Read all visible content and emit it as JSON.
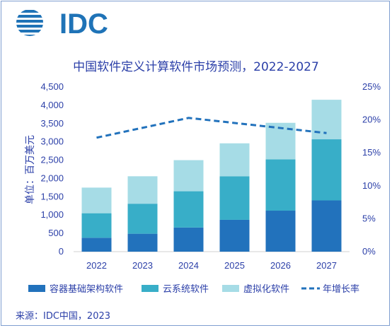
{
  "logo": {
    "text": "IDC",
    "color": "#1f73b7"
  },
  "source": "来源：IDC中国，2023",
  "chart_data": {
    "type": "bar",
    "stacked": true,
    "title": "中国软件定义计算软件市场预测，2022-2027",
    "ylabel": "单位：百万美元",
    "categories": [
      "2022",
      "2023",
      "2024",
      "2025",
      "2026",
      "2027"
    ],
    "ylim": [
      0,
      4500
    ],
    "yticks": [
      "0",
      "500",
      "1,000",
      "1,500",
      "2,000",
      "2,500",
      "3,000",
      "3,500",
      "4,000",
      "4,500"
    ],
    "y2lim": [
      0,
      25
    ],
    "y2ticks": [
      "0%",
      "5%",
      "10%",
      "15%",
      "20%",
      "25%"
    ],
    "series": [
      {
        "name": "容器基础架构软件",
        "color": "#2272bc",
        "values": [
          380,
          490,
          660,
          870,
          1120,
          1400
        ]
      },
      {
        "name": "云系统软件",
        "color": "#38aec8",
        "values": [
          670,
          820,
          990,
          1190,
          1400,
          1670
        ]
      },
      {
        "name": "虚拟化软件",
        "color": "#a6dce6",
        "values": [
          700,
          750,
          850,
          900,
          1000,
          1080
        ]
      }
    ],
    "line": {
      "name": "年增长率",
      "color": "#2272bc",
      "axis": "right",
      "values": [
        17.3,
        null,
        20.3,
        null,
        null,
        18.0
      ]
    },
    "legend_position": "bottom",
    "grid": false
  }
}
